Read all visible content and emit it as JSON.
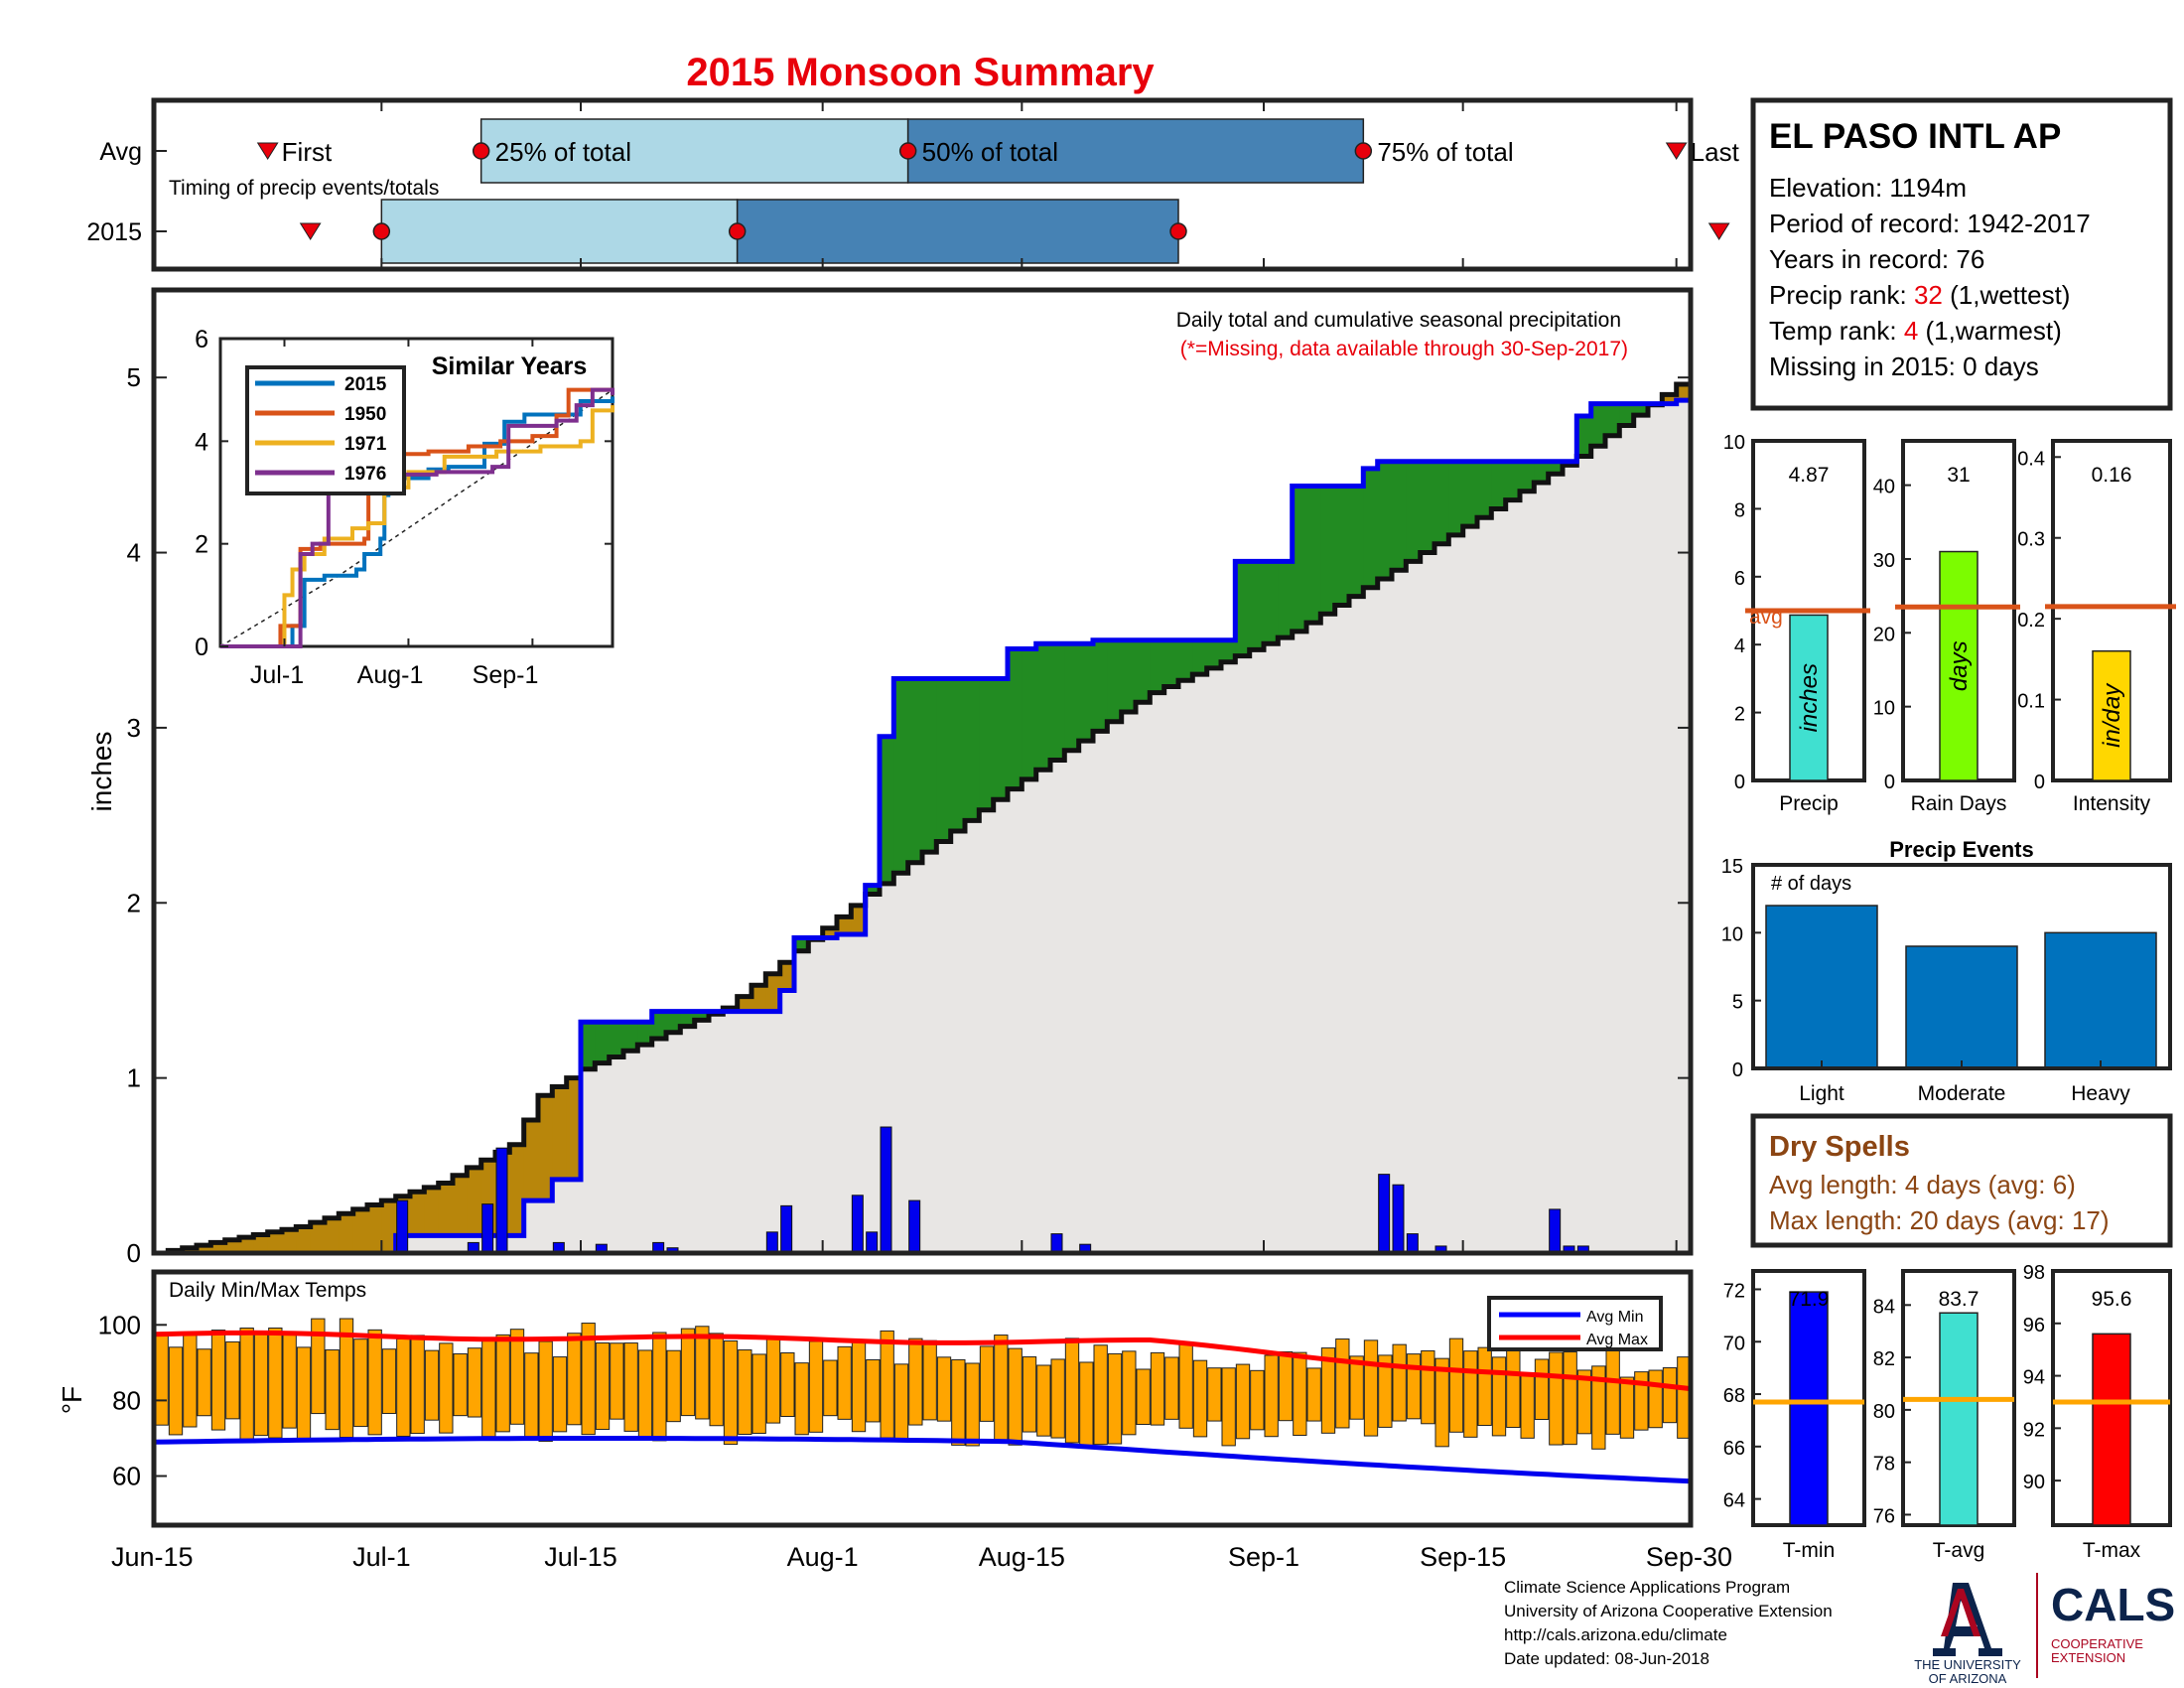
{
  "title": "2015 Monsoon Summary",
  "timing": {
    "row_avg_label": "Avg",
    "row_year_label": "2015",
    "subtitle": "Timing of precip events/totals",
    "first_label": "First",
    "last_label": "Last",
    "p25_label": "25% of total",
    "p50_label": "50% of total",
    "p75_label": "75% of total",
    "avg_days": {
      "first": 8,
      "p25": 23,
      "p50": 53,
      "p75": 85,
      "last": 107
    },
    "y2015_days": {
      "first": 11,
      "p25": 16,
      "p50": 41,
      "p75": 72,
      "last": 110
    }
  },
  "station": {
    "name": "EL PASO INTL AP",
    "elevation_text": "Elevation: 1194m",
    "period_text": "Period of record: 1942-2017",
    "years_text": "Years in record: 76",
    "precip_rank_prefix": "Precip rank: ",
    "precip_rank_value": "32",
    "precip_rank_suffix": " (1,wettest)",
    "temp_rank_prefix": "Temp rank: ",
    "temp_rank_value": "4",
    "temp_rank_suffix": " (1,warmest)",
    "missing_text": "Missing in 2015: 0 days"
  },
  "main_chart": {
    "ylabel": "inches",
    "note_line1": "Daily total and cumulative seasonal precipitation",
    "note_line2": "(*=Missing, data available through 30-Sep-2017)",
    "x_ticks": [
      "Jun-15",
      "Jul-1",
      "Jul-15",
      "Aug-1",
      "Aug-15",
      "Sep-1",
      "Sep-15",
      "Sep-30"
    ],
    "y_ticks": [
      "0",
      "1",
      "2",
      "3",
      "4",
      "5"
    ]
  },
  "inset": {
    "title": "Similar Years",
    "x_ticks": [
      "Jul-1",
      "Aug-1",
      "Sep-1"
    ],
    "y_ticks": [
      "0",
      "2",
      "4",
      "6"
    ],
    "legend": [
      "2015",
      "1950",
      "1971",
      "1976"
    ]
  },
  "temp_chart": {
    "title": "Daily Min/Max Temps",
    "ylabel": "°F",
    "y_ticks": [
      "60",
      "80",
      "100"
    ],
    "legend_min": "Avg Min",
    "legend_max": "Avg Max"
  },
  "summary_bars": {
    "precip": {
      "label": "Precip",
      "value_text": "4.87",
      "unit": "inches",
      "value": 4.87,
      "avg": 5.0,
      "ymax": 10,
      "ticks": [
        "0",
        "2",
        "4",
        "6",
        "8",
        "10"
      ],
      "avg_label": "avg",
      "color": "#40E0D0"
    },
    "rain_days": {
      "label": "Rain Days",
      "value_text": "31",
      "unit": "days",
      "value": 31,
      "avg": 23.5,
      "ymax": 46,
      "ticks": [
        "0",
        "10",
        "20",
        "30",
        "40"
      ],
      "color": "#7CFC00"
    },
    "intensity": {
      "label": "Intensity",
      "value_text": "0.16",
      "unit": "in/day",
      "value": 0.16,
      "avg": 0.215,
      "ymax": 0.42,
      "ticks": [
        "0",
        "0.1",
        "0.2",
        "0.3",
        "0.4"
      ],
      "color": "#FFD700"
    }
  },
  "precip_events": {
    "title": "Precip Events",
    "ylabel": "# of days",
    "categories": [
      "Light",
      "Moderate",
      "Heavy"
    ],
    "values": [
      12,
      9,
      10
    ],
    "ymax": 15,
    "ticks": [
      "0",
      "5",
      "10",
      "15"
    ]
  },
  "dry_spells": {
    "title": "Dry Spells",
    "avg_text": "Avg length: 4 days (avg: 6)",
    "max_text": "Max length: 20 days (avg: 17)"
  },
  "temp_summary": {
    "tmin": {
      "label": "T-min",
      "value_text": "71.9",
      "value": 71.9,
      "avg": 67.7,
      "ymin": 63,
      "ymax": 72.7,
      "ticks": [
        "64",
        "66",
        "68",
        "70",
        "72"
      ],
      "color": "#0000FF"
    },
    "tavg": {
      "label": "T-avg",
      "value_text": "83.7",
      "value": 83.7,
      "avg": 80.4,
      "ymin": 75.6,
      "ymax": 85.3,
      "ticks": [
        "76",
        "78",
        "80",
        "82",
        "84"
      ],
      "color": "#40E0D0"
    },
    "tmax": {
      "label": "T-max",
      "value_text": "95.6",
      "value": 95.6,
      "avg": 93.0,
      "ymin": 88.3,
      "ymax": 98,
      "ticks": [
        "90",
        "92",
        "94",
        "96",
        "98"
      ],
      "color": "#FF0000"
    }
  },
  "footer": {
    "line1": "Climate Science Applications Program",
    "line2": "University of Arizona Cooperative Extension",
    "line3": "http://cals.arizona.edu/climate",
    "line4": " Date updated: 08-Jun-2018",
    "ua_line1": "THE UNIVERSITY",
    "ua_line2": "OF ARIZONA",
    "cals_text": "CALS",
    "coop_line1": "COOPERATIVE",
    "coop_line2": "EXTENSION"
  },
  "chart_data": [
    {
      "type": "area",
      "title": "Daily total and cumulative seasonal precipitation",
      "ylabel": "inches",
      "ylim": [
        0,
        5.5
      ],
      "x_range": [
        "Jun-15",
        "Sep-30"
      ],
      "series": [
        {
          "name": "2015",
          "x_day": [
            0,
            16,
            17,
            24,
            26,
            28,
            30,
            35,
            44,
            45,
            48,
            50,
            51,
            52,
            60,
            62,
            63,
            66,
            76,
            80,
            85,
            86,
            87,
            100,
            101,
            107,
            108
          ],
          "y": [
            0,
            0,
            0.1,
            0.1,
            0.3,
            0.42,
            1.32,
            1.38,
            1.5,
            1.8,
            1.82,
            2.1,
            2.95,
            3.28,
            3.45,
            3.48,
            3.48,
            3.5,
            3.95,
            4.38,
            4.48,
            4.52,
            4.52,
            4.78,
            4.85,
            4.87,
            4.87
          ]
        },
        {
          "name": "Average",
          "x_day": [
            0,
            10,
            20,
            25,
            27,
            30,
            40,
            50,
            60,
            70,
            80,
            90,
            100,
            108
          ],
          "y": [
            0,
            0.15,
            0.4,
            0.62,
            0.9,
            1.05,
            1.4,
            2.05,
            2.65,
            3.2,
            3.55,
            4.05,
            4.55,
            5.02
          ]
        }
      ],
      "daily_precip": {
        "x_day": [
          17,
          22,
          23,
          24,
          28,
          31,
          35,
          36,
          43,
          44,
          49,
          50,
          51,
          53,
          63,
          65,
          86,
          87,
          88,
          90,
          98,
          99,
          100
        ],
        "y": [
          0.3,
          0.06,
          0.28,
          0.6,
          0.06,
          0.05,
          0.06,
          0.03,
          0.12,
          0.27,
          0.33,
          0.12,
          0.72,
          0.3,
          0.11,
          0.05,
          0.45,
          0.39,
          0.11,
          0.04,
          0.25,
          0.04,
          0.04
        ]
      }
    },
    {
      "type": "line",
      "title": "Similar Years",
      "series": [
        {
          "name": "2015",
          "color": "#0072BD"
        },
        {
          "name": "1950",
          "color": "#D95319"
        },
        {
          "name": "1971",
          "color": "#EDB120"
        },
        {
          "name": "1976",
          "color": "#7E2F8E"
        }
      ],
      "ylim": [
        0,
        6
      ]
    },
    {
      "type": "bar",
      "title": "Precip Events",
      "categories": [
        "Light",
        "Moderate",
        "Heavy"
      ],
      "values": [
        12,
        9,
        10
      ],
      "ylim": [
        0,
        15
      ]
    }
  ]
}
